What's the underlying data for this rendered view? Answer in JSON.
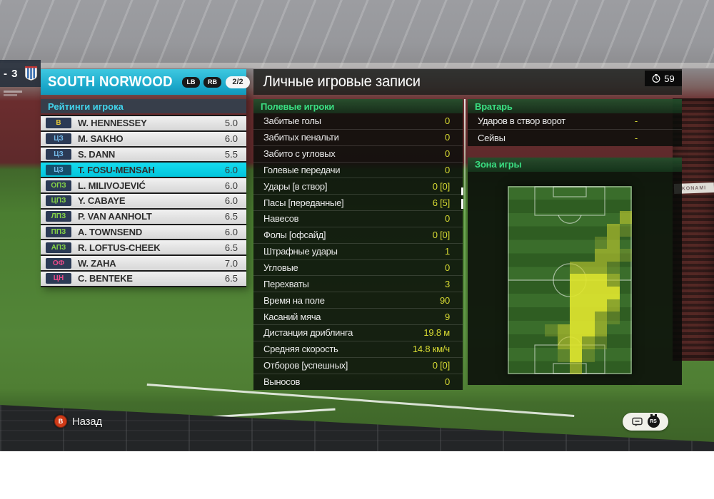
{
  "scoreboard": {
    "score": "- 3"
  },
  "clock": {
    "minute": "59"
  },
  "background": {
    "ad_board": "KONAMI"
  },
  "left_panel": {
    "team_name": "SOUTH NORWOOD",
    "badge_lb": "LB",
    "badge_rb": "RB",
    "page_count": "2/2",
    "section_title": "Рейтинги игрока",
    "players": [
      {
        "pos": "В",
        "pos_type": "gk",
        "name": "W. HENNESSEY",
        "rating": "5.0",
        "selected": false
      },
      {
        "pos": "ЦЗ",
        "pos_type": "def",
        "name": "M. SAKHO",
        "rating": "6.0",
        "selected": false
      },
      {
        "pos": "ЦЗ",
        "pos_type": "def",
        "name": "S. DANN",
        "rating": "5.5",
        "selected": false
      },
      {
        "pos": "ЦЗ",
        "pos_type": "def",
        "name": "T. FOSU-MENSAH",
        "rating": "6.0",
        "selected": true
      },
      {
        "pos": "ОПЗ",
        "pos_type": "mid",
        "name": "L. MILIVOJEVIĆ",
        "rating": "6.0",
        "selected": false
      },
      {
        "pos": "ЦПЗ",
        "pos_type": "mid",
        "name": "Y. CABAYE",
        "rating": "6.0",
        "selected": false
      },
      {
        "pos": "ЛПЗ",
        "pos_type": "mid",
        "name": "P. VAN AANHOLT",
        "rating": "6.5",
        "selected": false
      },
      {
        "pos": "ППЗ",
        "pos_type": "mid",
        "name": "A. TOWNSEND",
        "rating": "6.0",
        "selected": false
      },
      {
        "pos": "АПЗ",
        "pos_type": "mid",
        "name": "R. LOFTUS-CHEEK",
        "rating": "6.5",
        "selected": false
      },
      {
        "pos": "ОФ",
        "pos_type": "fwd",
        "name": "W. ZAHA",
        "rating": "7.0",
        "selected": false
      },
      {
        "pos": "ЦН",
        "pos_type": "fwd",
        "name": "C. BENTEKE",
        "rating": "6.5",
        "selected": false
      }
    ]
  },
  "right_panel": {
    "title": "Личные игровые записи",
    "outfield": {
      "header": "Полевые игроки",
      "rows": [
        {
          "label": "Забитые голы",
          "value": "0"
        },
        {
          "label": "Забитых пенальти",
          "value": "0"
        },
        {
          "label": "Забито с угловых",
          "value": "0"
        },
        {
          "label": "Голевые передачи",
          "value": "0"
        },
        {
          "label": "Удары [в створ]",
          "value": "0 [0]"
        },
        {
          "label": "Пасы [переданные]",
          "value": "6 [5]"
        },
        {
          "label": "Навесов",
          "value": "0"
        },
        {
          "label": "Фолы [офсайд]",
          "value": "0 [0]"
        },
        {
          "label": "Штрафные удары",
          "value": "1"
        },
        {
          "label": "Угловые",
          "value": "0"
        },
        {
          "label": "Перехваты",
          "value": "3"
        },
        {
          "label": "Время на поле",
          "value": "90"
        },
        {
          "label": "Касаний мяча",
          "value": "9"
        },
        {
          "label": "Дистанция дриблинга",
          "value": "19.8 м"
        },
        {
          "label": "Средняя скорость",
          "value": "14.8 км/ч"
        },
        {
          "label": "Отборов [успешных]",
          "value": "0 [0]"
        },
        {
          "label": "Выносов",
          "value": "0"
        }
      ]
    },
    "goalkeeper": {
      "header": "Вратарь",
      "rows": [
        {
          "label": "Ударов в створ ворот",
          "value": "-"
        },
        {
          "label": "Сейвы",
          "value": "-"
        }
      ]
    },
    "zone_header": "Зона игры"
  },
  "heatmap": {
    "grid": [
      "0000000000",
      "0000000000",
      "0000000002",
      "0000000021",
      "0000000120",
      "0000000221",
      "0000022210",
      "0000033320",
      "0000033330",
      "0000033320",
      "0000033210",
      "0001233200",
      "0000232100",
      "0000131000",
      "0000020000"
    ],
    "palette": {
      "1": "rgba(150,170,50,0.40)",
      "2": "rgba(192,202,46,0.62)",
      "3": "rgba(222,228,46,0.93)"
    }
  },
  "footer": {
    "back_button": "B",
    "back_label": "Назад",
    "rs_label": "RS"
  },
  "colors": {
    "positions": {
      "gk": "#e6c93c",
      "def": "#74b9e8",
      "mid": "#86d447",
      "fwd": "#ee4b8a"
    }
  }
}
